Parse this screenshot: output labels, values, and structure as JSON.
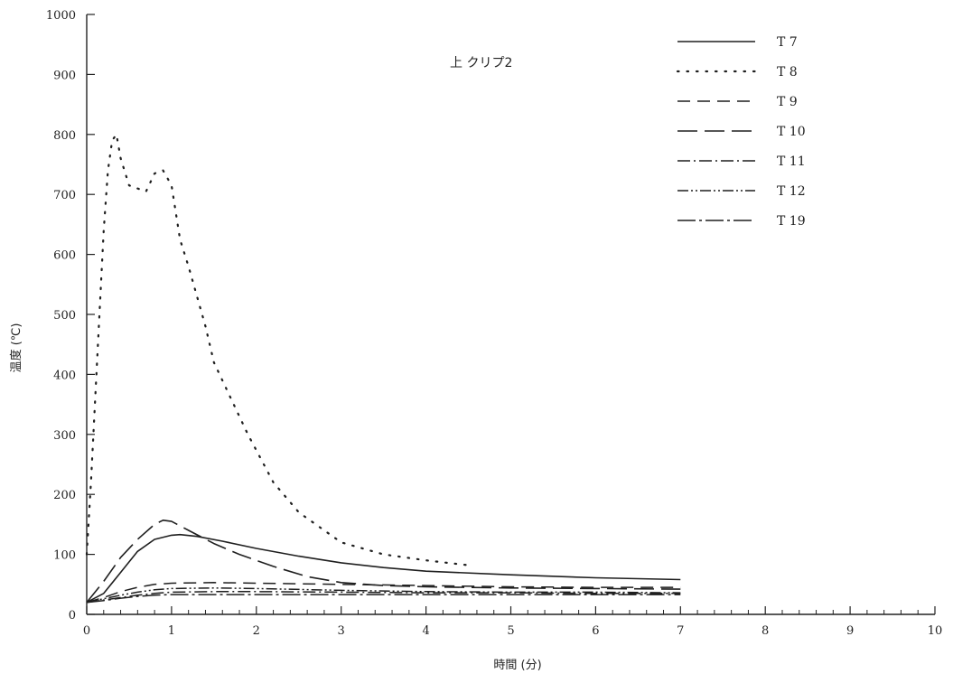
{
  "chart_data": {
    "type": "line",
    "title": "",
    "annotation": "上 クリプ2",
    "xlabel": "時間 (分)",
    "ylabel": "温度 (℃)",
    "xlim": [
      0,
      10
    ],
    "ylim": [
      0,
      1000
    ],
    "x_ticks": [
      0,
      1,
      2,
      3,
      4,
      5,
      6,
      7,
      8,
      9,
      10
    ],
    "y_ticks": [
      0,
      100,
      200,
      300,
      400,
      500,
      600,
      700,
      800,
      900,
      1000
    ],
    "grid": false,
    "legend_position": "top-right",
    "series": [
      {
        "name": "T 7",
        "style": "solid",
        "x": [
          0,
          0.2,
          0.4,
          0.6,
          0.8,
          1.0,
          1.1,
          1.3,
          1.6,
          2.0,
          2.5,
          3.0,
          3.5,
          4.0,
          5.0,
          6.0,
          7.0
        ],
        "y": [
          20,
          35,
          70,
          105,
          125,
          132,
          133,
          130,
          122,
          110,
          97,
          86,
          78,
          72,
          66,
          61,
          58
        ]
      },
      {
        "name": "T 8",
        "style": "dotted",
        "x": [
          0,
          0.05,
          0.1,
          0.15,
          0.2,
          0.25,
          0.3,
          0.35,
          0.4,
          0.5,
          0.6,
          0.7,
          0.8,
          0.9,
          1.0,
          1.05,
          1.1,
          1.2,
          1.3,
          1.4,
          1.5,
          1.7,
          1.9,
          2.2,
          2.5,
          2.8,
          3.0,
          3.5,
          4.0,
          4.5
        ],
        "y": [
          100,
          220,
          360,
          500,
          640,
          740,
          790,
          800,
          760,
          715,
          710,
          705,
          735,
          740,
          715,
          670,
          625,
          580,
          530,
          480,
          420,
          360,
          300,
          220,
          170,
          140,
          120,
          100,
          90,
          82
        ]
      },
      {
        "name": "T 9",
        "style": "dashed",
        "x": [
          0,
          0.2,
          0.4,
          0.6,
          0.8,
          1.0,
          1.5,
          2.0,
          3.0,
          4.0,
          5.0,
          6.0,
          7.0
        ],
        "y": [
          20,
          28,
          38,
          45,
          50,
          52,
          53,
          52,
          50,
          48,
          46,
          45,
          45
        ]
      },
      {
        "name": "T 10",
        "style": "longdash",
        "x": [
          0,
          0.2,
          0.4,
          0.6,
          0.8,
          0.9,
          1.0,
          1.2,
          1.5,
          1.8,
          2.2,
          2.6,
          3.0,
          3.5,
          4.0,
          5.0,
          6.0,
          7.0
        ],
        "y": [
          20,
          55,
          95,
          125,
          150,
          157,
          155,
          140,
          118,
          100,
          80,
          63,
          53,
          48,
          46,
          44,
          43,
          42
        ]
      },
      {
        "name": "T 11",
        "style": "dashdot",
        "x": [
          0,
          0.2,
          0.4,
          0.6,
          0.8,
          1.0,
          1.5,
          2.0,
          3.0,
          4.0,
          5.0,
          6.0,
          7.0
        ],
        "y": [
          20,
          24,
          28,
          32,
          35,
          37,
          38,
          38,
          37,
          36,
          36,
          35,
          35
        ]
      },
      {
        "name": "T 12",
        "style": "dashdotdot",
        "x": [
          0,
          0.2,
          0.4,
          0.6,
          0.8,
          1.0,
          1.5,
          2.0,
          3.0,
          4.0,
          5.0,
          6.0,
          7.0
        ],
        "y": [
          20,
          26,
          32,
          37,
          41,
          43,
          44,
          43,
          40,
          38,
          37,
          37,
          36
        ]
      },
      {
        "name": "T 19",
        "style": "longdashdot",
        "x": [
          0,
          0.2,
          0.4,
          0.6,
          0.8,
          1.0,
          1.5,
          2.0,
          3.0,
          4.0,
          5.0,
          6.0,
          7.0
        ],
        "y": [
          20,
          23,
          27,
          30,
          32,
          33,
          33,
          33,
          33,
          33,
          33,
          33,
          33
        ]
      }
    ]
  }
}
